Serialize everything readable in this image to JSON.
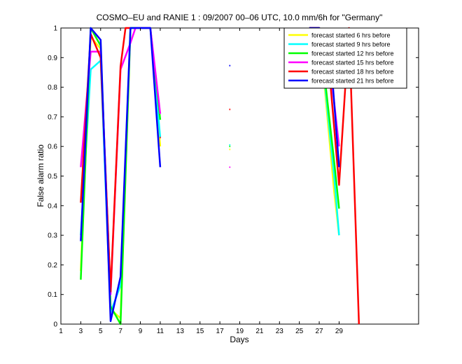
{
  "chart_data": {
    "type": "line",
    "title": "COSMO–EU and RANIE 1 : 09/2007 00–06 UTC, 10.0 mm/6h for \"Germany\"",
    "xlabel": "Days",
    "ylabel": "False alarm ratio",
    "xlim": [
      1,
      37
    ],
    "ylim": [
      0,
      1
    ],
    "xticks": [
      1,
      3,
      5,
      7,
      9,
      11,
      13,
      15,
      17,
      19,
      21,
      23,
      25,
      27,
      29
    ],
    "yticks": [
      0,
      0.1,
      0.2,
      0.3,
      0.4,
      0.5,
      0.6,
      0.7,
      0.8,
      0.9,
      1
    ],
    "ytick_labels": [
      "0",
      "0.1",
      "0.2",
      "0.3",
      "0.4",
      "0.5",
      "0.6",
      "0.7",
      "0.8",
      "0.9",
      "1"
    ],
    "grid": false,
    "legend_position": "top-right",
    "series": [
      {
        "name": "forecast started 6 hrs before",
        "color": "#ffff00",
        "segments": [
          [
            [
              3,
              0.18
            ],
            [
              4,
              0.97
            ],
            [
              5,
              0.93
            ],
            [
              6,
              0.05
            ],
            [
              7,
              0.02
            ],
            [
              8,
              1
            ],
            [
              10,
              1
            ],
            [
              11,
              0.6
            ]
          ],
          [
            [
              18,
              0.59
            ]
          ],
          [
            [
              26,
              1
            ],
            [
              27,
              1
            ],
            [
              28.5,
              0.45
            ],
            [
              29,
              0.3
            ]
          ]
        ]
      },
      {
        "name": "forecast started 9 hrs before",
        "color": "#00ffff",
        "segments": [
          [
            [
              3,
              0.3
            ],
            [
              4,
              0.86
            ],
            [
              5,
              0.89
            ],
            [
              6,
              0.04
            ],
            [
              7,
              0.13
            ],
            [
              8,
              1
            ],
            [
              10,
              1
            ],
            [
              11,
              0.63
            ]
          ],
          [
            [
              18,
              0.605
            ]
          ],
          [
            [
              26,
              1
            ],
            [
              27,
              1
            ],
            [
              28.5,
              0.5
            ],
            [
              29,
              0.3
            ]
          ]
        ]
      },
      {
        "name": "forecast started 12 hrs before",
        "color": "#00ff00",
        "segments": [
          [
            [
              3,
              0.15
            ],
            [
              4,
              1
            ],
            [
              5,
              0.94
            ],
            [
              6,
              0.06
            ],
            [
              7,
              0.0
            ],
            [
              8,
              1
            ],
            [
              10,
              1
            ],
            [
              11,
              0.69
            ]
          ],
          [
            [
              18,
              0.6
            ]
          ],
          [
            [
              26,
              1
            ],
            [
              27,
              1
            ],
            [
              28.5,
              0.55
            ],
            [
              29,
              0.39
            ]
          ]
        ]
      },
      {
        "name": "forecast started 15 hrs before",
        "color": "#ff00ff",
        "segments": [
          [
            [
              3,
              0.53
            ],
            [
              4,
              0.92
            ],
            [
              5,
              0.92
            ],
            [
              6,
              0.1
            ],
            [
              7,
              0.86
            ],
            [
              8,
              0.95
            ],
            [
              8.5,
              1
            ],
            [
              10,
              1
            ],
            [
              11,
              0.71
            ]
          ],
          [
            [
              18,
              0.53
            ]
          ],
          [
            [
              26,
              1
            ],
            [
              27,
              1
            ],
            [
              28,
              0.9
            ],
            [
              29,
              0.6
            ]
          ]
        ]
      },
      {
        "name": "forecast started 18 hrs before",
        "color": "#ff0000",
        "segments": [
          [
            [
              3,
              0.41
            ],
            [
              4,
              0.98
            ],
            [
              5,
              0.9
            ],
            [
              6,
              0.11
            ],
            [
              7,
              0.87
            ],
            [
              7.5,
              1
            ],
            [
              8,
              1
            ]
          ],
          [
            [
              11,
              0.63
            ]
          ],
          [
            [
              18,
              0.725
            ]
          ],
          [
            [
              26,
              1
            ],
            [
              27,
              1
            ],
            [
              28,
              0.86
            ],
            [
              29,
              0.47
            ],
            [
              30,
              1
            ],
            [
              31,
              0
            ]
          ]
        ]
      },
      {
        "name": "forecast started 21 hrs before",
        "color": "#0000ff",
        "segments": [
          [
            [
              3,
              0.28
            ],
            [
              4,
              1
            ],
            [
              5,
              0.96
            ],
            [
              6,
              0.01
            ],
            [
              7,
              0.16
            ],
            [
              8,
              1
            ],
            [
              10,
              1
            ],
            [
              11,
              0.53
            ]
          ],
          [
            [
              18,
              0.873
            ]
          ],
          [
            [
              26,
              1
            ],
            [
              27,
              1
            ],
            [
              28,
              0.97
            ],
            [
              29,
              0.53
            ]
          ]
        ]
      }
    ]
  }
}
